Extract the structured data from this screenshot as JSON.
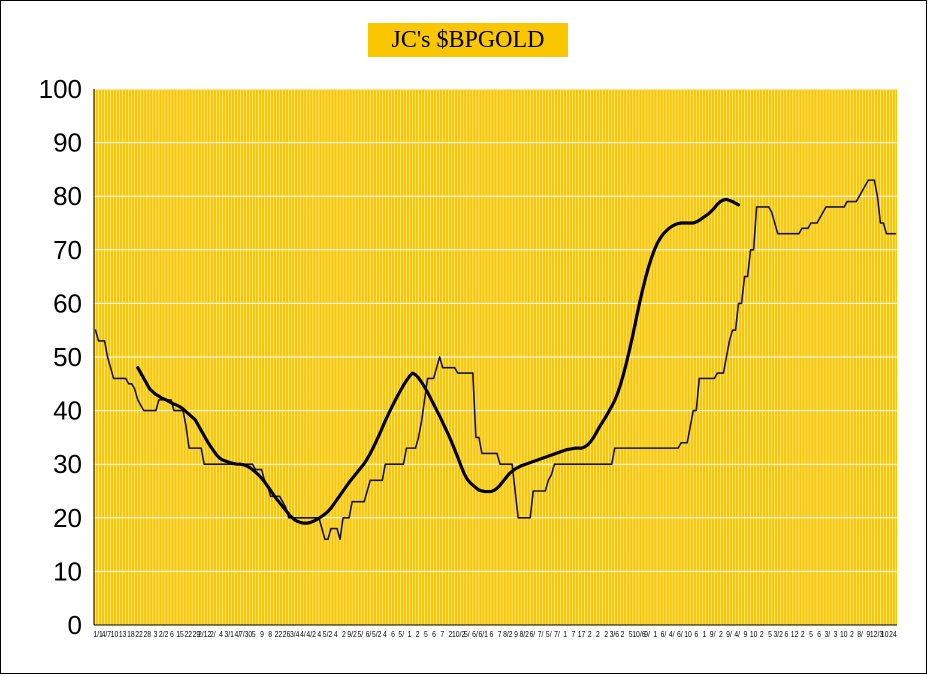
{
  "chart_data": {
    "type": "line",
    "title": "JC's $BPGOLD",
    "xlabel": "",
    "ylabel": "",
    "ylim": [
      0,
      100
    ],
    "y_ticks": [
      "0",
      "10",
      "20",
      "30",
      "40",
      "50",
      "60",
      "70",
      "80",
      "90",
      "100"
    ],
    "x_ticks": [
      "1/1",
      "4/7",
      "10",
      "13",
      "18",
      "22",
      "28",
      "3",
      "2/2",
      "6",
      "15",
      "22",
      "29",
      "2/12",
      "2/",
      "4",
      "3/1",
      "4/",
      "7/30",
      "5",
      "9",
      "8",
      "22",
      "26",
      "3/4",
      "4/",
      "4/2",
      "4",
      "5/2",
      "4",
      "2",
      "9/2",
      "5/",
      "6/",
      "5/2",
      "4",
      "6",
      "5/",
      "1",
      "2",
      "5",
      "6",
      "7",
      "2",
      "10/2",
      "5/",
      "6/",
      "6/1",
      "6",
      "7",
      "8/2",
      "9",
      "8/2",
      "6/",
      "7/",
      "5/",
      "7/",
      "1",
      "7",
      "17",
      "2",
      "2",
      "2",
      "3/6",
      "2",
      "5",
      "10/6",
      "9/",
      "1",
      "6/",
      "4/",
      "6/",
      "10",
      "6",
      "1",
      "9/",
      "2",
      "9/",
      "4/",
      "9",
      "10",
      "2",
      "5",
      "3/2",
      "6",
      "12",
      "2",
      "5",
      "6",
      "3/",
      "3",
      "10",
      "2",
      "8/",
      "9",
      "12/3",
      "10",
      "24"
    ],
    "plot_background": "#f9c600",
    "gridline_color": "#ffffff",
    "grid": true,
    "series": [
      {
        "color": "#141455",
        "values": [
          55,
          53,
          53,
          53,
          50,
          48,
          46,
          46,
          46,
          46,
          46,
          45,
          45,
          44,
          42,
          41,
          40,
          40,
          40,
          40,
          40,
          42,
          42,
          42,
          42,
          42,
          40,
          40,
          40,
          40,
          37,
          33,
          33,
          33,
          33,
          33,
          30,
          30,
          30,
          30,
          30,
          30,
          30,
          30,
          30,
          30,
          30,
          30,
          30,
          30,
          30,
          30,
          30,
          29,
          29,
          29,
          27,
          26,
          24,
          24,
          24,
          24,
          23,
          22,
          20,
          20,
          20,
          20,
          20,
          20,
          20,
          20,
          20,
          20,
          20,
          18,
          16,
          16,
          18,
          18,
          18,
          16,
          20,
          20,
          20,
          23,
          23,
          23,
          23,
          23,
          25,
          27,
          27,
          27,
          27,
          27,
          30,
          30,
          30,
          30,
          30,
          30,
          30,
          33,
          33,
          33,
          33,
          35,
          38,
          42,
          46,
          46,
          46,
          48,
          50,
          48,
          48,
          48,
          48,
          48,
          47,
          47,
          47,
          47,
          47,
          47,
          35,
          35,
          32,
          32,
          32,
          32,
          32,
          32,
          30,
          30,
          30,
          30,
          30,
          25,
          20,
          20,
          20,
          20,
          20,
          25,
          25,
          25,
          25,
          25,
          27,
          28,
          30,
          30,
          30,
          30,
          30,
          30,
          30,
          30,
          30,
          30,
          30,
          30,
          30,
          30,
          30,
          30,
          30,
          30,
          30,
          30,
          33,
          33,
          33,
          33,
          33,
          33,
          33,
          33,
          33,
          33,
          33,
          33,
          33,
          33,
          33,
          33,
          33,
          33,
          33,
          33,
          33,
          33,
          34,
          34,
          34,
          37,
          40,
          40,
          46,
          46,
          46,
          46,
          46,
          46,
          47,
          47,
          47,
          50,
          53,
          55,
          55,
          60,
          60,
          65,
          65,
          70,
          70,
          78,
          78,
          78,
          78,
          78,
          77,
          75,
          73,
          73,
          73,
          73,
          73,
          73,
          73,
          73,
          74,
          74,
          74,
          75,
          75,
          75,
          76,
          77,
          78,
          78,
          78,
          78,
          78,
          78,
          78,
          79,
          79,
          79,
          79,
          80,
          81,
          82,
          83,
          83,
          83,
          80,
          75,
          75,
          73,
          73,
          73,
          73
        ]
      },
      {
        "color": "#000000",
        "start_index": 14,
        "values": [
          48,
          47,
          46,
          45,
          44,
          43.5,
          43,
          42.7,
          42.3,
          42.1,
          41.8,
          41.5,
          41.2,
          41,
          40.7,
          40.3,
          39.8,
          39.3,
          38.8,
          38.3,
          37.3,
          36.3,
          35.3,
          34.3,
          33.4,
          32.6,
          31.8,
          31.2,
          30.8,
          30.6,
          30.4,
          30.2,
          30.1,
          30,
          30,
          29.9,
          29.7,
          29.4,
          29,
          28.5,
          28,
          27.4,
          26.7,
          25.9,
          25.1,
          24.3,
          23.5,
          22.8,
          22.1,
          21.4,
          20.7,
          20.1,
          19.6,
          19.3,
          19.1,
          19,
          19,
          19.1,
          19.3,
          19.6,
          19.9,
          20.3,
          20.7,
          21.2,
          21.8,
          22.6,
          23.4,
          24.2,
          25,
          25.8,
          26.6,
          27.3,
          28,
          28.7,
          29.4,
          30.1,
          31,
          32,
          33.1,
          34.3,
          35.5,
          36.8,
          38.1,
          39.3,
          40.5,
          41.6,
          42.7,
          43.7,
          44.7,
          45.6,
          46.4,
          47,
          46.7,
          46.1,
          45.3,
          44.4,
          43.4,
          42.3,
          41.2,
          40.1,
          39,
          37.8,
          36.6,
          35.4,
          34.1,
          32.7,
          31.3,
          29.8,
          28.4,
          27.3,
          26.6,
          26.1,
          25.6,
          25.2,
          25,
          24.9,
          24.9,
          24.9,
          25.1,
          25.5,
          26.1,
          26.8,
          27.5,
          28.2,
          28.7,
          29.1,
          29.4,
          29.7,
          29.9,
          30.1,
          30.3,
          30.5,
          30.7,
          30.9,
          31.1,
          31.3,
          31.5,
          31.7,
          31.9,
          32.1,
          32.3,
          32.5,
          32.7,
          32.8,
          32.9,
          33,
          33,
          33,
          33.2,
          33.6,
          34.2,
          35,
          36,
          37,
          37.9,
          38.8,
          39.8,
          40.8,
          41.9,
          43.3,
          45,
          47,
          49.2,
          51.6,
          54.1,
          56.8,
          59.5,
          62,
          64.3,
          66.4,
          68.2,
          69.8,
          71.1,
          72.1,
          72.9,
          73.5,
          74,
          74.4,
          74.7,
          74.9,
          75,
          75,
          75,
          75,
          75,
          75.2,
          75.5,
          75.9,
          76.3,
          76.7,
          77.2,
          77.8,
          78.5,
          79,
          79.3,
          79.4,
          79.2,
          79,
          78.7,
          78.4
        ]
      }
    ]
  }
}
